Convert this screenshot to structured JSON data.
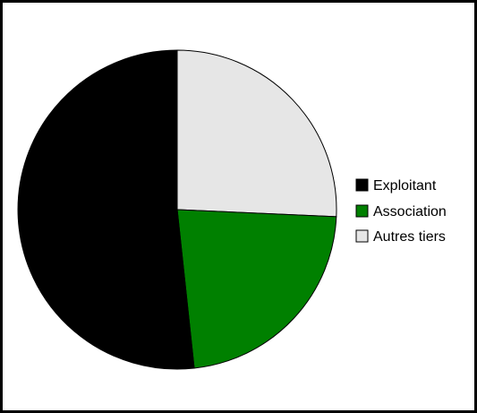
{
  "chart_data": {
    "type": "pie",
    "title": "",
    "slices": [
      {
        "label": "Autres tiers",
        "value": 25.7,
        "color": "#e6e6e6"
      },
      {
        "label": "Association",
        "value": 22.6,
        "color": "#008000"
      },
      {
        "label": "Exploitant",
        "value": 51.7,
        "color": "#000000"
      }
    ],
    "legend": {
      "placement": "right",
      "items": [
        {
          "label": "Exploitant",
          "color": "#000000"
        },
        {
          "label": "Association",
          "color": "#008000"
        },
        {
          "label": "Autres tiers",
          "color": "#e6e6e6"
        }
      ]
    }
  }
}
